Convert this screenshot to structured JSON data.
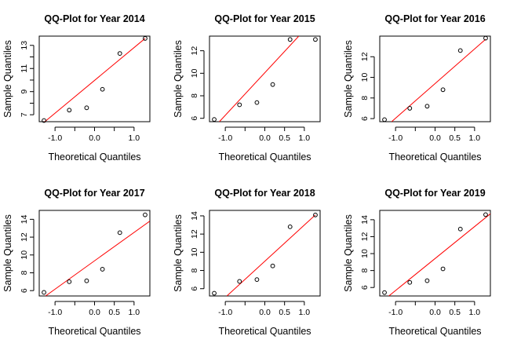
{
  "chart_data": [
    {
      "type": "scatter",
      "title": "QQ-Plot for Year 2014",
      "xlabel": "Theoretical Quantiles",
      "ylabel": "Sample Quantiles",
      "xlim": [
        -1.4,
        1.4
      ],
      "ylim": [
        6.4,
        13.8
      ],
      "xticks": [
        -1.0,
        -0.5,
        0.0,
        0.5,
        1.0
      ],
      "xtick_labels": [
        "-1.0",
        "",
        "0.0",
        "",
        "1.0"
      ],
      "yticks": [
        7,
        8,
        9,
        10,
        11,
        12,
        13
      ],
      "ytick_labels": [
        "7",
        "",
        "9",
        "",
        "11",
        "",
        "13"
      ],
      "points": {
        "x": [
          -1.28,
          -0.64,
          -0.2,
          0.2,
          0.64,
          1.28
        ],
        "y": [
          6.5,
          7.4,
          7.6,
          9.2,
          12.3,
          13.6
        ]
      },
      "reference_line": {
        "x": [
          -1.4,
          1.28
        ],
        "y": [
          6.0,
          13.6
        ]
      },
      "colors": {
        "line": "#ff0000",
        "points": "#000000"
      }
    },
    {
      "type": "scatter",
      "title": "QQ-Plot for Year 2015",
      "xlabel": "Theoretical Quantiles",
      "ylabel": "Sample Quantiles",
      "xlim": [
        -1.4,
        1.4
      ],
      "ylim": [
        5.7,
        13.3
      ],
      "xticks": [
        -1.0,
        -0.5,
        0.0,
        0.5,
        1.0
      ],
      "xtick_labels": [
        "-1.0",
        "",
        "0.0",
        "0.5",
        "1.0"
      ],
      "yticks": [
        6,
        8,
        10,
        12
      ],
      "ytick_labels": [
        "6",
        "8",
        "10",
        "12"
      ],
      "points": {
        "x": [
          -1.28,
          -0.64,
          -0.2,
          0.2,
          0.64,
          1.28
        ],
        "y": [
          5.9,
          7.2,
          7.4,
          9.0,
          13.0,
          13.0
        ]
      },
      "reference_line": {
        "x": [
          -1.15,
          0.86
        ],
        "y": [
          5.7,
          13.3
        ]
      },
      "colors": {
        "line": "#ff0000",
        "points": "#000000"
      }
    },
    {
      "type": "scatter",
      "title": "QQ-Plot for Year 2016",
      "xlabel": "Theoretical Quantiles",
      "ylabel": "Sample Quantiles",
      "xlim": [
        -1.4,
        1.4
      ],
      "ylim": [
        5.7,
        14.0
      ],
      "xticks": [
        -1.0,
        -0.5,
        0.0,
        0.5,
        1.0
      ],
      "xtick_labels": [
        "-1.0",
        "",
        "0.0",
        "0.5",
        "1.0"
      ],
      "yticks": [
        6,
        8,
        10,
        12
      ],
      "ytick_labels": [
        "6",
        "8",
        "10",
        "12"
      ],
      "points": {
        "x": [
          -1.28,
          -0.64,
          -0.2,
          0.2,
          0.64,
          1.28
        ],
        "y": [
          5.9,
          7.0,
          7.2,
          8.8,
          12.6,
          13.8
        ]
      },
      "reference_line": {
        "x": [
          -1.1,
          1.28
        ],
        "y": [
          5.7,
          13.7
        ]
      },
      "colors": {
        "line": "#ff0000",
        "points": "#000000"
      }
    },
    {
      "type": "scatter",
      "title": "QQ-Plot for Year 2017",
      "xlabel": "Theoretical Quantiles",
      "ylabel": "Sample Quantiles",
      "xlim": [
        -1.4,
        1.4
      ],
      "ylim": [
        5.4,
        15.0
      ],
      "xticks": [
        -1.0,
        -0.5,
        0.0,
        0.5,
        1.0
      ],
      "xtick_labels": [
        "-1.0",
        "",
        "0.0",
        "0.5",
        "1.0"
      ],
      "yticks": [
        6,
        8,
        10,
        12,
        14
      ],
      "ytick_labels": [
        "6",
        "8",
        "10",
        "12",
        "14"
      ],
      "points": {
        "x": [
          -1.28,
          -0.64,
          -0.2,
          0.2,
          0.64,
          1.28
        ],
        "y": [
          5.8,
          7.0,
          7.1,
          8.4,
          12.5,
          14.5
        ]
      },
      "reference_line": {
        "x": [
          -1.24,
          1.4
        ],
        "y": [
          5.4,
          13.8
        ]
      },
      "colors": {
        "line": "#ff0000",
        "points": "#000000"
      }
    },
    {
      "type": "scatter",
      "title": "QQ-Plot for Year 2018",
      "xlabel": "Theoretical Quantiles",
      "ylabel": "Sample Quantiles",
      "xlim": [
        -1.4,
        1.4
      ],
      "ylim": [
        5.2,
        14.6
      ],
      "xticks": [
        -1.0,
        -0.5,
        0.0,
        0.5,
        1.0
      ],
      "xtick_labels": [
        "-1.0",
        "",
        "0.0",
        "0.5",
        "1.0"
      ],
      "yticks": [
        6,
        8,
        10,
        12,
        14
      ],
      "ytick_labels": [
        "6",
        "8",
        "10",
        "12",
        "14"
      ],
      "points": {
        "x": [
          -1.28,
          -0.64,
          -0.2,
          0.2,
          0.64,
          1.28
        ],
        "y": [
          5.5,
          6.8,
          7.0,
          8.5,
          12.8,
          14.1
        ]
      },
      "reference_line": {
        "x": [
          -0.96,
          1.28
        ],
        "y": [
          5.2,
          14.1
        ]
      },
      "colors": {
        "line": "#ff0000",
        "points": "#000000"
      }
    },
    {
      "type": "scatter",
      "title": "QQ-Plot for Year 2019",
      "xlabel": "Theoretical Quantiles",
      "ylabel": "Sample Quantiles",
      "xlim": [
        -1.4,
        1.4
      ],
      "ylim": [
        5.0,
        15.1
      ],
      "xticks": [
        -1.0,
        -0.5,
        0.0,
        0.5,
        1.0
      ],
      "xtick_labels": [
        "-1.0",
        "",
        "0.0",
        "0.5",
        "1.0"
      ],
      "yticks": [
        6,
        8,
        10,
        12,
        14
      ],
      "ytick_labels": [
        "6",
        "8",
        "10",
        "12",
        "14"
      ],
      "points": {
        "x": [
          -1.28,
          -0.64,
          -0.2,
          0.2,
          0.64,
          1.28
        ],
        "y": [
          5.4,
          6.6,
          6.8,
          8.2,
          12.9,
          14.6
        ]
      },
      "reference_line": {
        "x": [
          -1.17,
          1.4
        ],
        "y": [
          5.0,
          14.7
        ]
      },
      "colors": {
        "line": "#ff0000",
        "points": "#000000"
      }
    }
  ]
}
